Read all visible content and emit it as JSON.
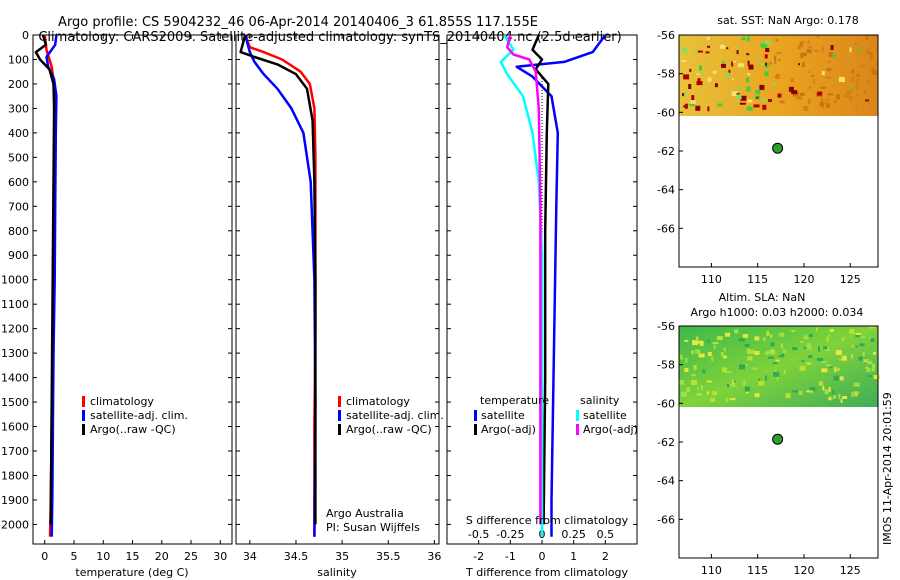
{
  "title_line1": "Argo profile: CS 5904232_46 06-Apr-2014 20140406_3 61.855S 117.155E",
  "title_line2": "Climatology: CARS2009. Satellite-adjusted climatology: synTS_20140404.nc (2.5d earlier)",
  "side_text": "IMOS 11-Apr-2014 20:01:59",
  "colors": {
    "climatology": "#ff0000",
    "satellite": "#0000ff",
    "argo": "#000000",
    "salinity_satellite": "#00ffff",
    "salinity_argo": "#ff00ff",
    "marker": "#2ca02c"
  },
  "chart_data": [
    {
      "type": "line",
      "name": "temperature",
      "xlabel": "temperature (deg C)",
      "ylabel": "",
      "xlim": [
        -2,
        32
      ],
      "ylim": [
        2080,
        0
      ],
      "xticks": [
        0,
        5,
        10,
        15,
        20,
        25,
        30
      ],
      "yticks": [
        0,
        100,
        200,
        300,
        400,
        500,
        600,
        700,
        800,
        900,
        1000,
        1100,
        1200,
        1300,
        1400,
        1500,
        1600,
        1700,
        1800,
        1900,
        2000
      ],
      "legend": [
        "climatology",
        "satellite-adj. clim.",
        "Argo(..raw -QC)"
      ],
      "legend_position": "lower-center",
      "series": [
        {
          "name": "climatology",
          "color": "#ff0000",
          "x": [
            0.0,
            0.3,
            1.2,
            1.6,
            1.7,
            1.6,
            1.5,
            1.4,
            1.3,
            1.2,
            1.1,
            1.0,
            0.9
          ],
          "y": [
            0,
            60,
            130,
            200,
            300,
            500,
            800,
            1100,
            1400,
            1600,
            1800,
            1950,
            2050
          ]
        },
        {
          "name": "satellite-adj. clim.",
          "color": "#0000ff",
          "x": [
            2.0,
            1.8,
            0.3,
            0.6,
            1.6,
            2.0,
            1.9,
            1.8,
            1.7,
            1.5,
            1.4,
            1.3,
            1.2
          ],
          "y": [
            0,
            40,
            90,
            130,
            180,
            250,
            400,
            700,
            1000,
            1300,
            1600,
            1900,
            2050
          ]
        },
        {
          "name": "Argo(..raw -QC)",
          "color": "#000000",
          "x": [
            -0.3,
            0.2,
            -1.5,
            -0.8,
            0.8,
            1.5,
            1.6,
            1.5,
            1.4,
            1.3,
            1.2,
            1.1,
            1.0
          ],
          "y": [
            0,
            40,
            70,
            100,
            140,
            200,
            300,
            600,
            900,
            1200,
            1500,
            1800,
            2000
          ]
        }
      ]
    },
    {
      "type": "line",
      "name": "salinity",
      "xlabel": "salinity",
      "ylabel": "",
      "xlim": [
        33.85,
        36.05
      ],
      "ylim": [
        2080,
        0
      ],
      "xticks": [
        34,
        34.5,
        35,
        35.5,
        36
      ],
      "xticklabels": [
        "34",
        "34.5",
        "35",
        "35.5",
        "36"
      ],
      "legend": [
        "climatology",
        "satellite-adj. clim.",
        "Argo(..raw -QC)"
      ],
      "legend_position": "lower-right",
      "annotation": [
        "Argo Australia",
        "PI: Susan Wijffels"
      ],
      "series": [
        {
          "name": "climatology",
          "color": "#ff0000",
          "x": [
            33.95,
            34.0,
            34.15,
            34.35,
            34.55,
            34.65,
            34.7,
            34.71,
            34.71,
            34.71,
            34.7,
            34.7
          ],
          "y": [
            0,
            50,
            70,
            100,
            150,
            200,
            300,
            500,
            800,
            1200,
            1600,
            2050
          ]
        },
        {
          "name": "satellite-adj. clim.",
          "color": "#0000ff",
          "x": [
            33.95,
            34.0,
            34.05,
            34.15,
            34.3,
            34.45,
            34.58,
            34.66,
            34.7,
            34.71,
            34.7
          ],
          "y": [
            0,
            70,
            110,
            160,
            220,
            300,
            400,
            600,
            1000,
            1500,
            2050
          ]
        },
        {
          "name": "Argo(..raw -QC)",
          "color": "#000000",
          "x": [
            33.95,
            33.9,
            34.05,
            34.3,
            34.5,
            34.62,
            34.68,
            34.7,
            34.71,
            34.71,
            34.71
          ],
          "y": [
            0,
            70,
            90,
            120,
            160,
            220,
            350,
            600,
            1000,
            1500,
            2000
          ]
        }
      ]
    },
    {
      "type": "line",
      "name": "difference from climatology",
      "xlabel": "T difference from climatology",
      "xlabel2": "S difference from climatology",
      "ylabel": "",
      "xlim": [
        -3,
        3
      ],
      "ylim": [
        2080,
        0
      ],
      "xticks": [
        -2,
        -1,
        0,
        1,
        2
      ],
      "xticks2": [
        -0.5,
        -0.25,
        0,
        0.25,
        0.5
      ],
      "xticklabels2": [
        "-0.5",
        "-0.25",
        "0",
        "0.25",
        "0.5"
      ],
      "legend_groups": [
        {
          "header": "temperature",
          "items": [
            "satellite",
            "Argo(-adj)"
          ]
        },
        {
          "header": "salinity",
          "items": [
            "satellite",
            "Argo(-adj)"
          ]
        }
      ],
      "series": [
        {
          "name": "temperature satellite",
          "color": "#0000ff",
          "x": [
            2.0,
            1.6,
            0.7,
            -0.8,
            -0.3,
            0.3,
            0.5,
            0.45,
            0.4,
            0.35,
            0.3,
            0.3
          ],
          "y": [
            0,
            70,
            110,
            130,
            170,
            250,
            400,
            700,
            1100,
            1500,
            1900,
            2050
          ]
        },
        {
          "name": "temperature Argo(-adj)",
          "color": "#000000",
          "x": [
            -0.1,
            -0.3,
            0.0,
            -0.2,
            0.2,
            0.15,
            0.1,
            0.1,
            0.05
          ],
          "y": [
            0,
            60,
            100,
            140,
            200,
            400,
            800,
            1400,
            2000
          ]
        },
        {
          "name": "salinity satellite",
          "color": "#00ffff",
          "x": [
            -1.2,
            -0.9,
            -1.3,
            -1.1,
            -0.6,
            -0.3,
            -0.1,
            0.0,
            0.0,
            0.0
          ],
          "y": [
            0,
            60,
            110,
            160,
            250,
            400,
            600,
            900,
            1300,
            2050
          ]
        },
        {
          "name": "salinity Argo(-adj)",
          "color": "#ff00ff",
          "x": [
            -1.0,
            -1.1,
            -0.9,
            -0.4,
            -0.2,
            -0.1,
            -0.05,
            -0.05,
            -0.05
          ],
          "y": [
            0,
            50,
            80,
            100,
            150,
            300,
            700,
            1300,
            2000
          ]
        }
      ]
    },
    {
      "type": "heatmap",
      "name": "sat. SST map",
      "title": "sat. SST: NaN Argo: 0.178",
      "xlim": [
        106.5,
        128
      ],
      "ylim": [
        -68,
        -56
      ],
      "xticks": [
        110,
        115,
        120,
        125
      ],
      "yticks": [
        -56,
        -58,
        -60,
        -62,
        -64,
        -66
      ],
      "data_extent_lat": [
        -60,
        -56
      ],
      "marker": {
        "lon": 117.155,
        "lat": -61.855
      }
    },
    {
      "type": "heatmap",
      "name": "Altim. SLA map",
      "title": "Altim. SLA: NaN",
      "title2": "Argo h1000: 0.03 h2000: 0.034",
      "xlim": [
        106.5,
        128
      ],
      "ylim": [
        -68,
        -56
      ],
      "xticks": [
        110,
        115,
        120,
        125
      ],
      "yticks": [
        -56,
        -58,
        -60,
        -62,
        -64,
        -66
      ],
      "data_extent_lat": [
        -60,
        -56
      ],
      "marker": {
        "lon": 117.155,
        "lat": -61.855
      }
    }
  ]
}
